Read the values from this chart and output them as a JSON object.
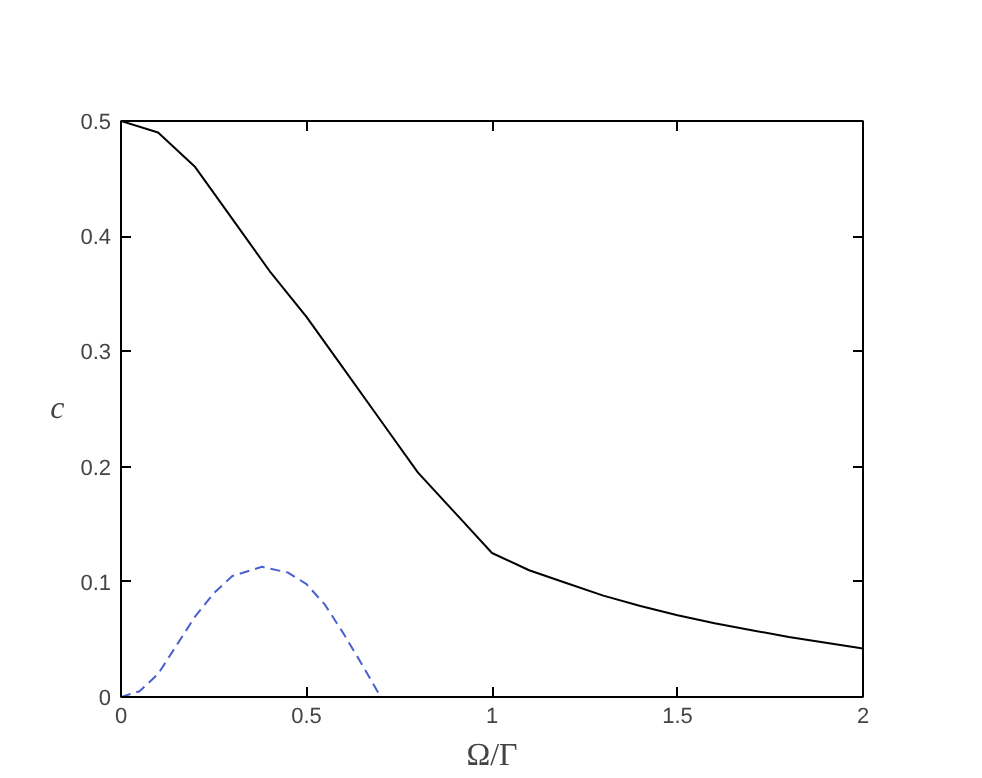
{
  "chart_data": {
    "type": "line",
    "xlabel": "Ω/Γ",
    "ylabel": "c",
    "xlim": [
      0,
      2
    ],
    "ylim": [
      0,
      0.5
    ],
    "xticks": [
      0,
      0.5,
      1,
      1.5,
      2
    ],
    "yticks": [
      0,
      0.1,
      0.2,
      0.3,
      0.4,
      0.5
    ],
    "grid": false,
    "marker": "none",
    "series": [
      {
        "color": "#000000",
        "line_style": "solid",
        "x": [
          0,
          0.1,
          0.2,
          0.3,
          0.4,
          0.5,
          0.6,
          0.7,
          0.8,
          0.9,
          1.0,
          1.1,
          1.2,
          1.3,
          1.4,
          1.5,
          1.6,
          1.7,
          1.8,
          1.9,
          2.0
        ],
        "values": [
          0.5,
          0.49,
          0.46,
          0.415,
          0.37,
          0.33,
          0.285,
          0.24,
          0.195,
          0.16,
          0.125,
          0.11,
          0.099,
          0.088,
          0.079,
          0.071,
          0.064,
          0.058,
          0.052,
          0.047,
          0.042
        ]
      },
      {
        "color": "#4a5fd0",
        "line_style": "dashed",
        "x": [
          0,
          0.05,
          0.1,
          0.15,
          0.2,
          0.25,
          0.3,
          0.38,
          0.45,
          0.5,
          0.55,
          0.6,
          0.65,
          0.7
        ],
        "values": [
          0,
          0.005,
          0.02,
          0.045,
          0.07,
          0.09,
          0.105,
          0.113,
          0.108,
          0.098,
          0.08,
          0.055,
          0.028,
          0
        ]
      }
    ]
  }
}
